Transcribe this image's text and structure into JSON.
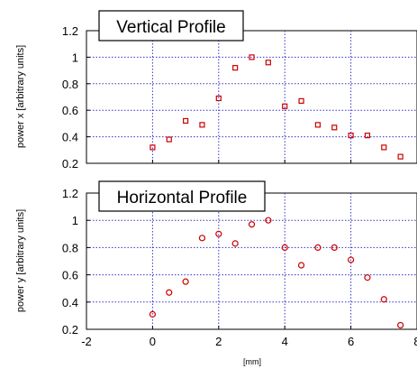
{
  "chart_data": [
    {
      "type": "scatter",
      "title": "Vertical Profile",
      "xlabel": "",
      "ylabel": "power x [arbitrary units]",
      "xlim": [
        -2,
        8
      ],
      "ylim": [
        0.2,
        1.2
      ],
      "x_ticks": [
        "-2",
        "0",
        "2",
        "4",
        "6",
        "8"
      ],
      "y_ticks": [
        "0.2",
        "0.4",
        "0.6",
        "0.8",
        "1",
        "1.2"
      ],
      "grid": true,
      "marker": "square",
      "marker_color": "#cc0000",
      "points": [
        {
          "x": 0,
          "y": 0.32
        },
        {
          "x": 0.5,
          "y": 0.38
        },
        {
          "x": 1,
          "y": 0.52
        },
        {
          "x": 1.5,
          "y": 0.49
        },
        {
          "x": 2,
          "y": 0.69
        },
        {
          "x": 2.5,
          "y": 0.92
        },
        {
          "x": 3,
          "y": 1.0
        },
        {
          "x": 3.5,
          "y": 0.96
        },
        {
          "x": 4,
          "y": 0.63
        },
        {
          "x": 4.5,
          "y": 0.67
        },
        {
          "x": 5,
          "y": 0.49
        },
        {
          "x": 5.5,
          "y": 0.47
        },
        {
          "x": 6,
          "y": 0.41
        },
        {
          "x": 6.5,
          "y": 0.41
        },
        {
          "x": 7,
          "y": 0.32
        },
        {
          "x": 7.5,
          "y": 0.25
        }
      ]
    },
    {
      "type": "scatter",
      "title": "Horizontal Profile",
      "xlabel": "[mm]",
      "ylabel": "power y [arbitrary units]",
      "xlim": [
        -2,
        8
      ],
      "ylim": [
        0.2,
        1.2
      ],
      "x_ticks": [
        "-2",
        "0",
        "2",
        "4",
        "6",
        "8"
      ],
      "y_ticks": [
        "0.2",
        "0.4",
        "0.6",
        "0.8",
        "1",
        "1.2"
      ],
      "grid": true,
      "marker": "circle",
      "marker_color": "#cc0000",
      "points": [
        {
          "x": 0,
          "y": 0.31
        },
        {
          "x": 0.5,
          "y": 0.47
        },
        {
          "x": 1,
          "y": 0.55
        },
        {
          "x": 1.5,
          "y": 0.87
        },
        {
          "x": 2,
          "y": 0.9
        },
        {
          "x": 2.5,
          "y": 0.83
        },
        {
          "x": 3,
          "y": 0.97
        },
        {
          "x": 3.5,
          "y": 1.0
        },
        {
          "x": 4,
          "y": 0.8
        },
        {
          "x": 4.5,
          "y": 0.67
        },
        {
          "x": 5,
          "y": 0.8
        },
        {
          "x": 5.5,
          "y": 0.8
        },
        {
          "x": 6,
          "y": 0.71
        },
        {
          "x": 6.5,
          "y": 0.58
        },
        {
          "x": 7,
          "y": 0.42
        },
        {
          "x": 7.5,
          "y": 0.23
        }
      ]
    }
  ]
}
